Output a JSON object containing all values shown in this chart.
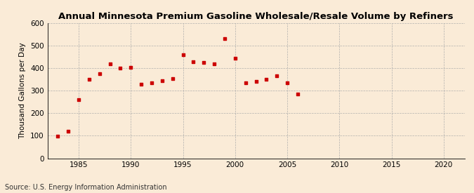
{
  "title": "Annual Minnesota Premium Gasoline Wholesale/Resale Volume by Refiners",
  "ylabel": "Thousand Gallons per Day",
  "source": "Source: U.S. Energy Information Administration",
  "background_color": "#faebd7",
  "marker_color": "#cc0000",
  "years": [
    1983,
    1984,
    1985,
    1986,
    1987,
    1988,
    1989,
    1990,
    1991,
    1992,
    1993,
    1994,
    1995,
    1996,
    1997,
    1998,
    1999,
    2000,
    2001,
    2002,
    2003,
    2004,
    2005,
    2006
  ],
  "values": [
    97,
    120,
    260,
    350,
    375,
    420,
    400,
    405,
    330,
    335,
    345,
    355,
    460,
    430,
    425,
    420,
    530,
    445,
    335,
    340,
    350,
    365,
    335,
    285
  ],
  "xlim": [
    1982,
    2022
  ],
  "ylim": [
    0,
    600
  ],
  "xticks": [
    1985,
    1990,
    1995,
    2000,
    2005,
    2010,
    2015,
    2020
  ],
  "yticks": [
    0,
    100,
    200,
    300,
    400,
    500,
    600
  ],
  "title_fontsize": 9.5,
  "label_fontsize": 7.5,
  "tick_fontsize": 7.5,
  "source_fontsize": 7
}
